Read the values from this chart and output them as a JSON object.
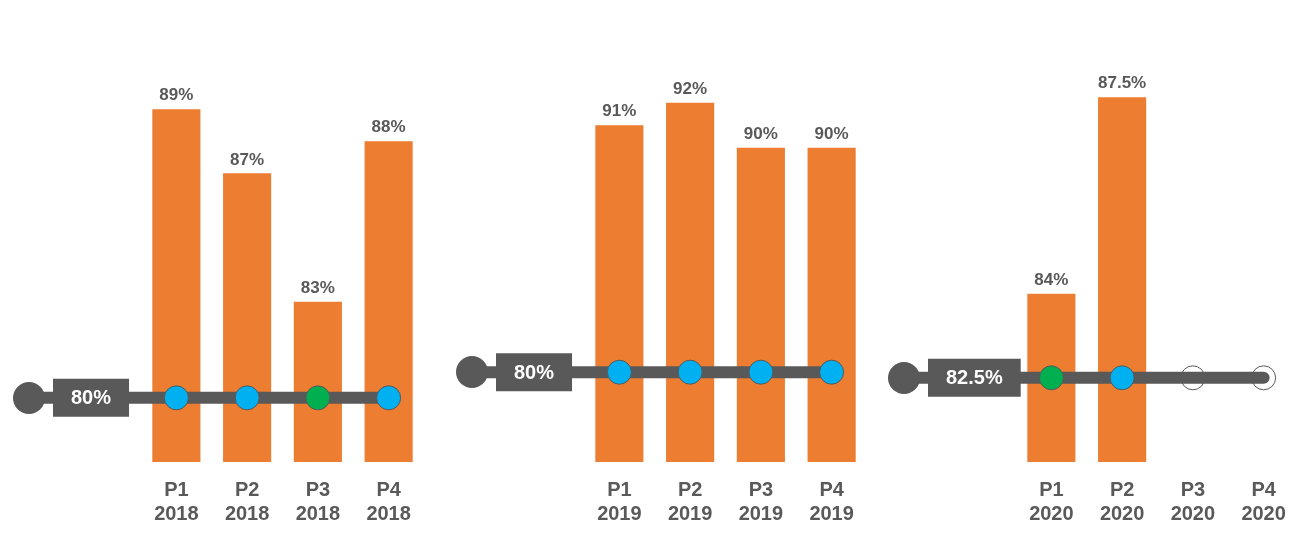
{
  "chart_data": [
    {
      "type": "bar",
      "categories": [
        "P1\n2018",
        "P2\n2018",
        "P3\n2018",
        "P4\n2018"
      ],
      "tick_labels": "x",
      "grid": false,
      "legend": false,
      "marker": "circle",
      "series": [
        {
          "color": "#ed7d31",
          "values": [
            89,
            87,
            83,
            88
          ],
          "value_labels": [
            "89%",
            "87%",
            "83%",
            "88%"
          ]
        },
        {
          "type": "scatter",
          "values": [
            80,
            80,
            80,
            80
          ],
          "colors": [
            "#00b0f0",
            "#00b0f0",
            "#00b050",
            "#00b0f0"
          ]
        }
      ],
      "ref_lines": [
        {
          "axis": "y",
          "value": 80,
          "label": "80%",
          "color": "#595959"
        }
      ]
    },
    {
      "type": "bar",
      "categories": [
        "P1\n2019",
        "P2\n2019",
        "P3\n2019",
        "P4\n2019"
      ],
      "tick_labels": "x",
      "grid": false,
      "legend": false,
      "marker": "circle",
      "series": [
        {
          "color": "#ed7d31",
          "values": [
            91,
            92,
            90,
            90
          ],
          "value_labels": [
            "91%",
            "92%",
            "90%",
            "90%"
          ]
        },
        {
          "type": "scatter",
          "values": [
            80,
            80,
            80,
            80
          ],
          "colors": [
            "#00b0f0",
            "#00b0f0",
            "#00b0f0",
            "#00b0f0"
          ]
        }
      ],
      "ref_lines": [
        {
          "axis": "y",
          "value": 80,
          "label": "80%",
          "color": "#595959"
        }
      ]
    },
    {
      "type": "bar",
      "categories": [
        "P1\n2020",
        "P2\n2020",
        "P3\n2020",
        "P4\n2020"
      ],
      "tick_labels": "x",
      "grid": false,
      "legend": false,
      "marker": "circle",
      "series": [
        {
          "color": "#ed7d31",
          "values": [
            84,
            87.5,
            null,
            null
          ],
          "value_labels": [
            "84%",
            "87.5%",
            null,
            null
          ]
        },
        {
          "type": "scatter",
          "values": [
            82.5,
            82.5,
            82.5,
            82.5
          ],
          "colors": [
            "#00b050",
            "#00b0f0",
            null,
            null
          ]
        }
      ],
      "ref_lines": [
        {
          "axis": "y",
          "value": 82.5,
          "label": "82.5%",
          "color": "#595959"
        }
      ]
    }
  ]
}
